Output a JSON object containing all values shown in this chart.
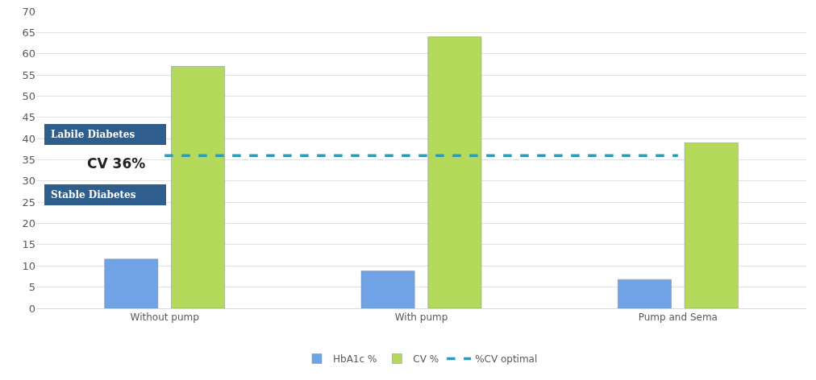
{
  "chart_data": {
    "type": "bar",
    "categories": [
      "Without pump",
      "With pump",
      "Pump and Sema"
    ],
    "series": [
      {
        "name": "HbA1c %",
        "color": "#6fa3e6",
        "values": [
          11.6,
          8.8,
          6.8
        ]
      },
      {
        "name": "CV %",
        "color": "#b5d95a",
        "values": [
          57,
          64,
          39
        ]
      },
      {
        "name": "%CV optimal",
        "type": "line",
        "line_style": "dashed",
        "color": "#2e9ab5",
        "values": [
          36,
          36,
          36
        ]
      }
    ],
    "ylim": [
      0,
      70
    ],
    "yticks": [
      0,
      5,
      10,
      15,
      20,
      25,
      30,
      35,
      40,
      45,
      50,
      55,
      60,
      65,
      70
    ],
    "grid": "y",
    "legend": "bottom",
    "annotations": [
      "Labile Diabetes",
      "CV 36%",
      "Stable Diabetes"
    ]
  }
}
